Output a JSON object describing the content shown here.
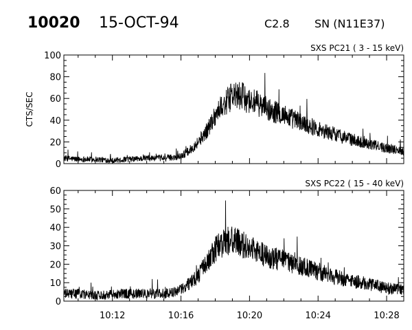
{
  "header": {
    "event_id": "10020",
    "date": "15-OCT-94",
    "flare_class": "C2.8",
    "location": "SN (N11E37)"
  },
  "chart_data": [
    {
      "type": "line",
      "title": "SXS PC21  (  3 - 15 keV)",
      "ylabel": "CTS/SEC",
      "xlabel": "",
      "ylim": [
        0,
        100
      ],
      "yticks": [
        0,
        20,
        40,
        60,
        80,
        100
      ],
      "xlim": [
        "10:09:10",
        "10:29:00"
      ],
      "xticks": [
        "10:12",
        "10:16",
        "10:20",
        "10:24",
        "10:28"
      ],
      "show_xtick_labels": false,
      "grid": false,
      "series": [
        {
          "x": [
            "10:09:10",
            "10:10:00",
            "10:11:00",
            "10:12:00",
            "10:13:00",
            "10:14:00",
            "10:15:00",
            "10:15:40",
            "10:16:00",
            "10:16:30",
            "10:17:00",
            "10:17:30",
            "10:18:00",
            "10:18:30",
            "10:19:00",
            "10:19:30",
            "10:20:00",
            "10:20:30",
            "10:21:00",
            "10:22:00",
            "10:23:00",
            "10:24:00",
            "10:25:00",
            "10:26:00",
            "10:27:00",
            "10:28:00",
            "10:29:00"
          ],
          "y": [
            5,
            4,
            4,
            3,
            4,
            5,
            5,
            6,
            7,
            12,
            20,
            30,
            45,
            55,
            62,
            62,
            58,
            55,
            50,
            45,
            38,
            32,
            27,
            22,
            18,
            14,
            12
          ]
        }
      ]
    },
    {
      "type": "line",
      "title": "SXS PC22  ( 15 - 40 keV)",
      "ylabel": "",
      "xlabel": "",
      "ylim": [
        0,
        60
      ],
      "yticks": [
        0,
        10,
        20,
        30,
        40,
        50,
        60
      ],
      "xlim": [
        "10:09:10",
        "10:29:00"
      ],
      "xticks": [
        "10:12",
        "10:16",
        "10:20",
        "10:24",
        "10:28"
      ],
      "show_xtick_labels": true,
      "grid": false,
      "series": [
        {
          "x": [
            "10:09:10",
            "10:10:00",
            "10:11:00",
            "10:12:00",
            "10:13:00",
            "10:14:00",
            "10:15:00",
            "10:15:40",
            "10:16:00",
            "10:16:30",
            "10:17:00",
            "10:17:30",
            "10:18:00",
            "10:18:30",
            "10:19:00",
            "10:19:30",
            "10:20:00",
            "10:20:30",
            "10:21:00",
            "10:22:00",
            "10:23:00",
            "10:24:00",
            "10:25:00",
            "10:26:00",
            "10:27:00",
            "10:28:00",
            "10:29:00"
          ],
          "y": [
            4,
            4,
            3,
            4,
            4,
            4,
            4,
            5,
            6,
            10,
            14,
            20,
            28,
            32,
            33,
            31,
            29,
            27,
            24,
            22,
            19,
            16,
            13,
            11,
            9,
            7,
            6
          ]
        }
      ]
    }
  ]
}
